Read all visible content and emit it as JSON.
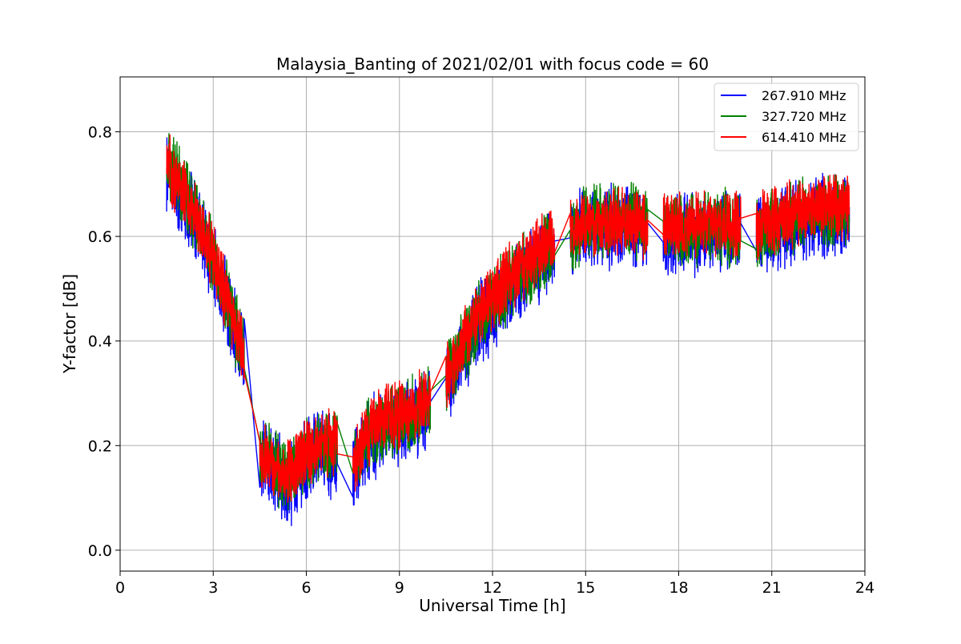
{
  "chart_data": {
    "type": "line",
    "title": "Malaysia_Banting of 2021/02/01 with focus code = 60",
    "xlabel": "Universal Time [h]",
    "ylabel": "Y-factor [dB]",
    "xlim": [
      0,
      24
    ],
    "ylim": [
      -0.04,
      0.905
    ],
    "xticks": [
      0,
      3,
      6,
      9,
      12,
      15,
      18,
      21,
      24
    ],
    "xtick_labels": [
      "0",
      "3",
      "6",
      "9",
      "12",
      "15",
      "18",
      "21",
      "24"
    ],
    "yticks": [
      0.0,
      0.2,
      0.4,
      0.6,
      0.8
    ],
    "ytick_labels": [
      "0.0",
      "0.2",
      "0.4",
      "0.6",
      "0.8"
    ],
    "grid": true,
    "legend_position": "top-right",
    "segments_hours": [
      [
        1.5,
        4.0
      ],
      [
        4.5,
        7.0
      ],
      [
        7.5,
        10.0
      ],
      [
        10.5,
        14.0
      ],
      [
        14.5,
        17.0
      ],
      [
        17.5,
        20.0
      ],
      [
        20.5,
        23.5
      ]
    ],
    "series": [
      {
        "name": "267.910 MHz",
        "color": "#0000ff",
        "noise_amplitude": 0.055,
        "x": [
          1.5,
          2.0,
          2.5,
          3.0,
          3.5,
          4.0,
          4.5,
          5.0,
          5.5,
          6.0,
          6.5,
          7.0,
          7.5,
          8.0,
          8.5,
          9.0,
          9.5,
          10.0,
          10.5,
          11.0,
          11.5,
          12.0,
          12.5,
          13.0,
          13.5,
          14.0,
          14.5,
          15.0,
          15.5,
          16.0,
          16.5,
          17.0,
          17.5,
          18.0,
          18.5,
          19.0,
          19.5,
          20.0,
          20.5,
          21.0,
          21.5,
          22.0,
          22.5,
          23.0,
          23.5
        ],
        "y": [
          0.73,
          0.68,
          0.62,
          0.55,
          0.46,
          0.36,
          0.18,
          0.15,
          0.13,
          0.17,
          0.19,
          0.18,
          0.15,
          0.21,
          0.23,
          0.24,
          0.25,
          0.28,
          0.31,
          0.37,
          0.43,
          0.46,
          0.5,
          0.52,
          0.55,
          0.58,
          0.6,
          0.61,
          0.62,
          0.62,
          0.62,
          0.61,
          0.6,
          0.6,
          0.6,
          0.61,
          0.61,
          0.6,
          0.6,
          0.61,
          0.62,
          0.63,
          0.64,
          0.64,
          0.64
        ]
      },
      {
        "name": "327.720 MHz",
        "color": "#008000",
        "noise_amplitude": 0.05,
        "x": [
          1.5,
          2.0,
          2.5,
          3.0,
          3.5,
          4.0,
          4.5,
          5.0,
          5.5,
          6.0,
          6.5,
          7.0,
          7.5,
          8.0,
          8.5,
          9.0,
          9.5,
          10.0,
          10.5,
          11.0,
          11.5,
          12.0,
          12.5,
          13.0,
          13.5,
          14.0,
          14.5,
          15.0,
          15.5,
          16.0,
          16.5,
          17.0,
          17.5,
          18.0,
          18.5,
          19.0,
          19.5,
          20.0,
          20.5,
          21.0,
          21.5,
          22.0,
          22.5,
          23.0,
          23.5
        ],
        "y": [
          0.74,
          0.69,
          0.63,
          0.56,
          0.47,
          0.37,
          0.19,
          0.16,
          0.14,
          0.18,
          0.2,
          0.19,
          0.16,
          0.22,
          0.24,
          0.25,
          0.26,
          0.29,
          0.32,
          0.38,
          0.44,
          0.47,
          0.51,
          0.53,
          0.56,
          0.59,
          0.61,
          0.62,
          0.63,
          0.63,
          0.63,
          0.62,
          0.61,
          0.61,
          0.61,
          0.62,
          0.62,
          0.61,
          0.61,
          0.62,
          0.63,
          0.64,
          0.65,
          0.65,
          0.65
        ]
      },
      {
        "name": "614.410 MHz",
        "color": "#ff0000",
        "noise_amplitude": 0.045,
        "x": [
          1.5,
          2.0,
          2.5,
          3.0,
          3.5,
          4.0,
          4.5,
          5.0,
          5.5,
          6.0,
          6.5,
          7.0,
          7.5,
          8.0,
          8.5,
          9.0,
          9.5,
          10.0,
          10.5,
          11.0,
          11.5,
          12.0,
          12.5,
          13.0,
          13.5,
          14.0,
          14.5,
          15.0,
          15.5,
          16.0,
          16.5,
          17.0,
          17.5,
          18.0,
          18.5,
          19.0,
          19.5,
          20.0,
          20.5,
          21.0,
          21.5,
          22.0,
          22.5,
          23.0,
          23.5
        ],
        "y": [
          0.74,
          0.69,
          0.63,
          0.56,
          0.47,
          0.37,
          0.19,
          0.16,
          0.15,
          0.19,
          0.21,
          0.2,
          0.17,
          0.23,
          0.25,
          0.26,
          0.27,
          0.3,
          0.33,
          0.39,
          0.45,
          0.48,
          0.52,
          0.54,
          0.57,
          0.6,
          0.61,
          0.62,
          0.63,
          0.63,
          0.63,
          0.62,
          0.62,
          0.62,
          0.62,
          0.62,
          0.62,
          0.62,
          0.62,
          0.63,
          0.64,
          0.65,
          0.66,
          0.66,
          0.66
        ]
      }
    ]
  }
}
